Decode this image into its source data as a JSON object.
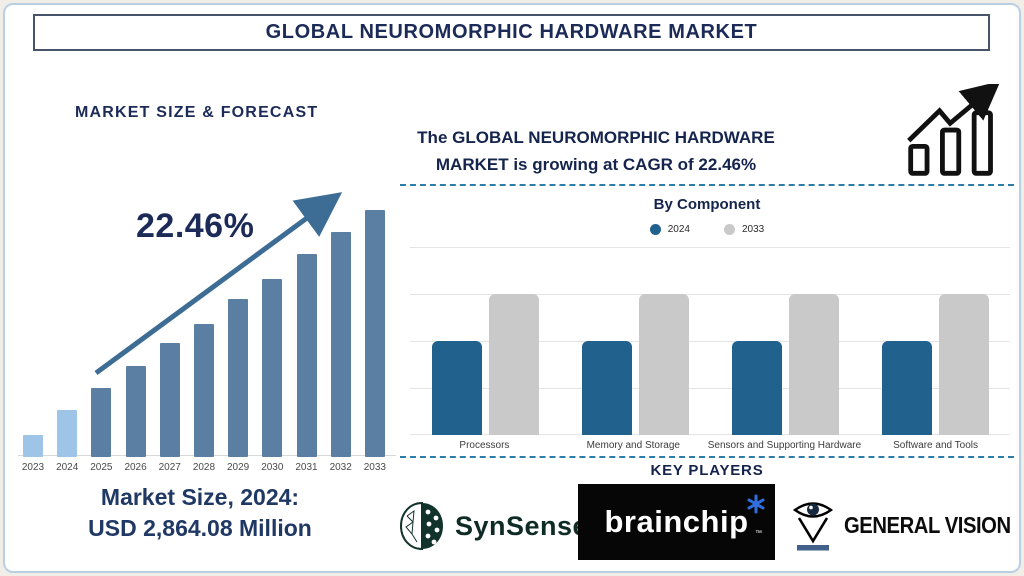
{
  "header": {
    "title": "GLOBAL NEUROMORPHIC HARDWARE MARKET"
  },
  "left_panel": {
    "section_title": "MARKET SIZE & FORECAST",
    "cagr_annotation": "22.46%",
    "market_size_caption_line1": "Market Size, 2024:",
    "market_size_caption_line2": "USD 2,864.08 Million"
  },
  "right_panel": {
    "headline_line1": "The GLOBAL NEUROMORPHIC HARDWARE",
    "headline_line2": "MARKET is growing at CAGR of 22.46%"
  },
  "chart_data": [
    {
      "name": "market-size-forecast",
      "type": "bar",
      "title": "MARKET SIZE & FORECAST",
      "categories": [
        "2023",
        "2024",
        "2025",
        "2026",
        "2027",
        "2028",
        "2029",
        "2030",
        "2031",
        "2032",
        "2033"
      ],
      "values": [
        9,
        19,
        28,
        37,
        46,
        54,
        64,
        72,
        82,
        91,
        100
      ],
      "values_unit": "relative-bar-height-percent (no numeric axis shown)",
      "annotation": "22.46%",
      "known_point": {
        "year": "2024",
        "value_text": "USD 2,864.08 Million"
      },
      "bar_color_actuals": "#9ec4e8",
      "bar_color_forecast": "#5b7fa3",
      "grid": "off",
      "xlabel": "",
      "ylabel": ""
    },
    {
      "name": "by-component",
      "type": "bar",
      "title": "By Component",
      "categories": [
        "Processors",
        "Memory and Storage",
        "Sensors and Supporting Hardware",
        "Software and Tools"
      ],
      "series": [
        {
          "name": "2024",
          "color": "#20618e",
          "values": [
            50,
            50,
            50,
            50
          ]
        },
        {
          "name": "2033",
          "color": "#c9c9c9",
          "values": [
            75,
            75,
            75,
            75
          ]
        }
      ],
      "values_unit": "relative-bar-height-percent (no numeric axis shown)",
      "ylim": [
        0,
        100
      ],
      "grid": "horizontal",
      "legend_position": "top",
      "xlabel": "",
      "ylabel": ""
    }
  ],
  "key_players": {
    "section_title": "KEY PLAYERS",
    "players": [
      {
        "name": "SynSense",
        "logo_icon": "brain-icon"
      },
      {
        "name": "brainchip",
        "trademark": "™",
        "logo_icon": "spark-asterisk-icon"
      },
      {
        "name": "GENERAL VISION",
        "logo_icon": "eye-pin-icon"
      }
    ]
  },
  "colors": {
    "navy_text": "#1b2a57",
    "forecast_bar_actual": "#9ec4e8",
    "forecast_bar_future": "#5b7fa3",
    "trend_arrow": "#3d6d94",
    "component_2024": "#20618e",
    "component_2033": "#c9c9c9",
    "dashed_divider": "#2e7ca8",
    "frame_border": "#b9cfe2",
    "title_box_border": "#47546b"
  }
}
